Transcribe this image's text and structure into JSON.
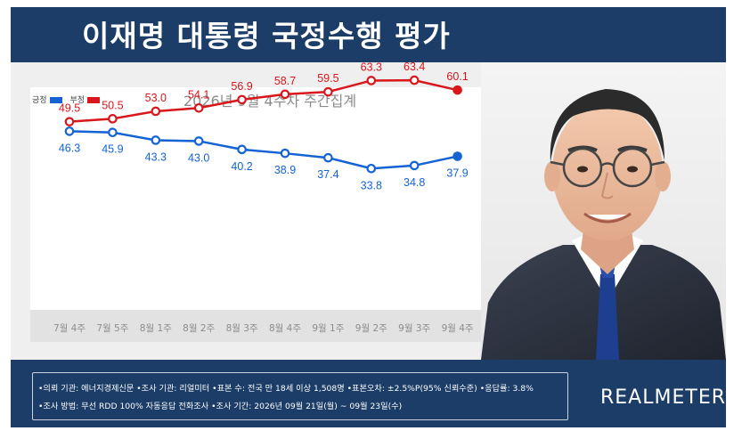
{
  "header": {
    "title": "이재명 대통령 국정수행 평가"
  },
  "colors": {
    "positive": "#1463d4",
    "negative": "#d9161b",
    "navy": "#1b3d68"
  },
  "legend": {
    "positive_label": "긍정",
    "negative_label": "부정"
  },
  "chart_data": {
    "type": "line",
    "title": "2026년 9월 4주차 주간집계",
    "categories": [
      "7월 4주",
      "7월 5주",
      "8월 1주",
      "8월 2주",
      "8월 3주",
      "8월 4주",
      "9월 1주",
      "9월 2주",
      "9월 3주",
      "9월 4주"
    ],
    "series": [
      {
        "name": "부정",
        "values": [
          49.5,
          50.5,
          53.0,
          54.1,
          56.9,
          58.7,
          59.5,
          63.3,
          63.4,
          60.1
        ]
      },
      {
        "name": "긍정",
        "values": [
          46.3,
          45.9,
          43.3,
          43.0,
          40.2,
          38.9,
          37.4,
          33.8,
          34.8,
          37.9
        ]
      }
    ],
    "ylim": [
      0,
      100
    ],
    "xlabel": "",
    "ylabel": "",
    "grid": false,
    "legend_position": "top-left"
  },
  "footer": {
    "line1": "•의뢰 기관: 에너지경제신문  •조사 기관: 리얼미터  •표본 수: 전국 만 18세 이상 1,508명  •표본오차: ±2.5%P(95% 신뢰수준)  •응답률: 3.8%",
    "line2": "•조사 방법: 무선 RDD 100% 자동응답 전화조사  •조사 기간: 2026년 09월 21일(월) ~ 09월 23일(수)",
    "brand": "REALMETER"
  }
}
